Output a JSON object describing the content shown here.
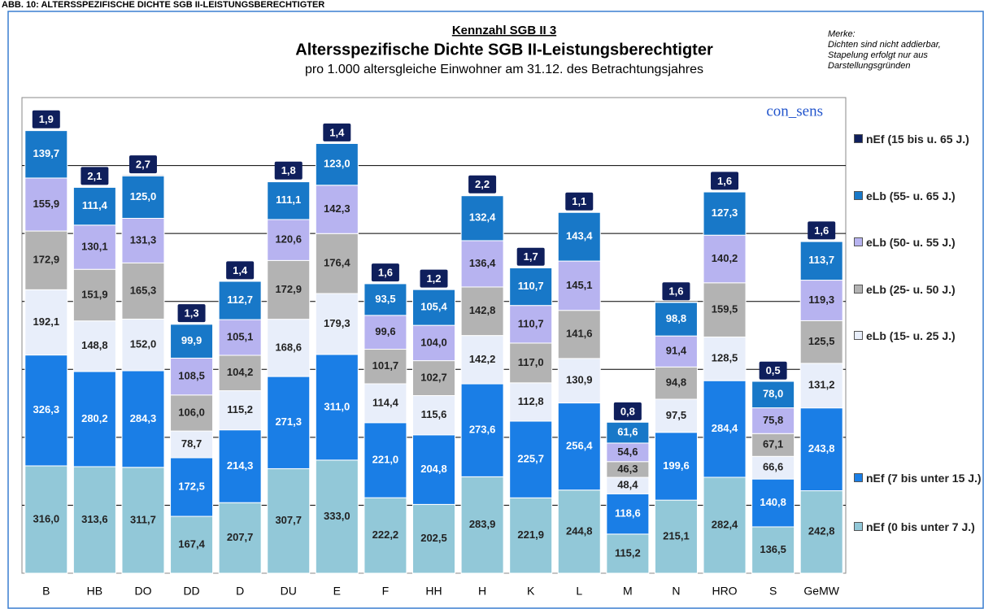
{
  "header": "ABB. 10: ALTERSSPEZIFISCHE DICHTE SGB II-LEISTUNGSBERECHTIGTER",
  "chart_data": {
    "type": "stacked_bar",
    "kicker": "Kennzahl SGB II 3",
    "title": "Altersspezifische Dichte SGB II-Leistungsberechtigter",
    "subtitle": "pro 1.000 altersgleiche Einwohner am 31.12. des Betrachtungsjahres",
    "note": [
      "Merke:",
      "Dichten sind nicht addierbar,",
      "Stapelung erfolgt nur aus",
      "Darstellungsgründen"
    ],
    "watermark": "con_sens",
    "categories": [
      "B",
      "HB",
      "DO",
      "DD",
      "D",
      "DU",
      "E",
      "F",
      "HH",
      "H",
      "K",
      "L",
      "M",
      "N",
      "HRO",
      "S",
      "GeMW"
    ],
    "ylim": [
      0,
      1400
    ],
    "yticks": [
      200,
      400,
      600,
      800,
      1000,
      1200
    ],
    "grid": true,
    "series": [
      {
        "name": "nEf (0 bis unter 7 J.)",
        "color": "#92c8d8",
        "values": [
          316.0,
          313.6,
          311.7,
          167.4,
          207.7,
          307.7,
          333.0,
          222.2,
          202.5,
          283.9,
          221.9,
          244.8,
          115.2,
          215.1,
          282.4,
          136.5,
          242.8
        ],
        "value_labels": [
          "316,0",
          "313,6",
          "311,7",
          "167,4",
          "207,7",
          "307,7",
          "333,0",
          "222,2",
          "202,5",
          "283,9",
          "221,9",
          "244,8",
          "115,2",
          "215,1",
          "282,4",
          "136,5",
          "242,8"
        ]
      },
      {
        "name": "nEf (7 bis unter 15 J.)",
        "color": "#1a7ee6",
        "values": [
          326.3,
          280.2,
          284.3,
          172.5,
          214.3,
          271.3,
          311.0,
          221.0,
          204.8,
          273.6,
          225.7,
          256.4,
          118.6,
          199.6,
          284.4,
          140.8,
          243.8
        ],
        "value_labels": [
          "326,3",
          "280,2",
          "284,3",
          "172,5",
          "214,3",
          "271,3",
          "311,0",
          "221,0",
          "204,8",
          "273,6",
          "225,7",
          "256,4",
          "118,6",
          "199,6",
          "284,4",
          "140,8",
          "243,8"
        ]
      },
      {
        "name": "eLb (15- u. 25 J.)",
        "color": "#e8eefa",
        "values": [
          192.1,
          148.8,
          152.0,
          78.7,
          115.2,
          168.6,
          179.3,
          114.4,
          115.6,
          142.2,
          112.8,
          130.9,
          48.4,
          97.5,
          128.5,
          66.6,
          131.2
        ],
        "value_labels": [
          "192,1",
          "148,8",
          "152,0",
          "78,7",
          "115,2",
          "168,6",
          "179,3",
          "114,4",
          "115,6",
          "142,2",
          "112,8",
          "130,9",
          "48,4",
          "97,5",
          "128,5",
          "66,6",
          "131,2"
        ]
      },
      {
        "name": "eLb (25- u. 50 J.)",
        "color": "#b3b3b3",
        "values": [
          172.9,
          151.9,
          165.3,
          106.0,
          104.2,
          172.9,
          176.4,
          101.7,
          102.7,
          142.8,
          117.0,
          141.6,
          46.3,
          94.8,
          159.5,
          67.1,
          125.5
        ],
        "value_labels": [
          "172,9",
          "151,9",
          "165,3",
          "106,0",
          "104,2",
          "172,9",
          "176,4",
          "101,7",
          "102,7",
          "142,8",
          "117,0",
          "141,6",
          "46,3",
          "94,8",
          "159,5",
          "67,1",
          "125,5"
        ]
      },
      {
        "name": "eLb (50- u. 55 J.)",
        "color": "#b7b3f0",
        "values": [
          155.9,
          130.1,
          131.3,
          108.5,
          105.1,
          120.6,
          142.3,
          99.6,
          104.0,
          136.4,
          110.7,
          145.1,
          54.6,
          91.4,
          140.2,
          75.8,
          119.3
        ],
        "value_labels": [
          "155,9",
          "130,1",
          "131,3",
          "108,5",
          "105,1",
          "120,6",
          "142,3",
          "99,6",
          "104,0",
          "136,4",
          "110,7",
          "145,1",
          "54,6",
          "91,4",
          "140,2",
          "75,8",
          "119,3"
        ]
      },
      {
        "name": "eLb (55- u. 65 J.)",
        "color": "#1878c8",
        "values": [
          139.7,
          111.4,
          125.0,
          99.9,
          112.7,
          111.1,
          123.0,
          93.5,
          105.4,
          132.4,
          110.7,
          143.4,
          61.6,
          98.8,
          127.3,
          78.0,
          113.7
        ],
        "value_labels": [
          "139,7",
          "111,4",
          "125,0",
          "99,9",
          "112,7",
          "111,1",
          "123,0",
          "93,5",
          "105,4",
          "132,4",
          "110,7",
          "143,4",
          "61,6",
          "98,8",
          "127,3",
          "78,0",
          "113,7"
        ]
      },
      {
        "name": "nEf (15 bis u. 65 J.)",
        "color": "#0f1f5c",
        "values": [
          1.9,
          2.1,
          2.7,
          1.3,
          1.4,
          1.8,
          1.4,
          1.6,
          1.2,
          2.2,
          1.7,
          1.1,
          0.8,
          1.6,
          1.6,
          0.5,
          1.6
        ],
        "value_labels": [
          "1,9",
          "2,1",
          "2,7",
          "1,3",
          "1,4",
          "1,8",
          "1,4",
          "1,6",
          "1,2",
          "2,2",
          "1,7",
          "1,1",
          "0,8",
          "1,6",
          "1,6",
          "0,5",
          "1,6"
        ]
      }
    ]
  }
}
